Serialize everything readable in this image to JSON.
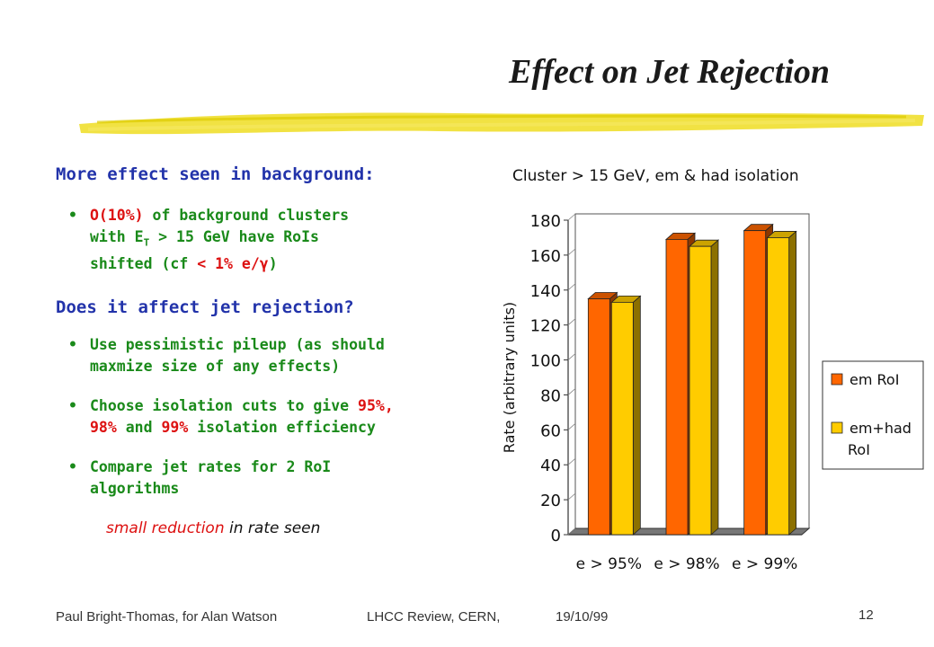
{
  "slide": {
    "title": "Effect on Jet Rejection",
    "page_number": "12",
    "footer_author": "Paul Bright-Thomas, for Alan Watson",
    "footer_event": "LHCC Review, CERN,",
    "footer_date": "19/10/99"
  },
  "content": {
    "heading1": "More effect seen in background:",
    "bullet1_red": "O(10%)",
    "bullet1_line1_rest": " of background clusters",
    "bullet1_line2_a": "with E",
    "bullet1_line2_sub": "T",
    "bullet1_line2_b": " > 15 GeV have RoIs",
    "bullet1_line3_a": "shifted (cf ",
    "bullet1_line3_red": "< 1% e/γ",
    "bullet1_line3_b": ")",
    "heading2": "Does it affect jet rejection?",
    "bullet2_line1": "Use pessimistic pileup (as should",
    "bullet2_line2": "maxmize size of any effects)",
    "bullet3_line1_a": "Choose isolation cuts to give ",
    "bullet3_line1_red": "95%,",
    "bullet3_line2_red1": "98%",
    "bullet3_line2_mid": " and ",
    "bullet3_line2_red2": "99%",
    "bullet3_line2_rest": " isolation efficiency",
    "bullet4_line1": "Compare jet rates for 2 RoI",
    "bullet4_line2": "algorithms",
    "note_red": "small reduction",
    "note_rest": " in rate seen",
    "bullet_glyph": "•"
  },
  "chart_data": {
    "type": "bar",
    "title": "Cluster > 15 GeV, em & had isolation",
    "ylabel": "Rate (arbitrary units)",
    "categories": [
      "e > 95%",
      "e > 98%",
      "e > 99%"
    ],
    "ylim": [
      0,
      180
    ],
    "yticks": [
      0,
      20,
      40,
      60,
      80,
      100,
      120,
      140,
      160,
      180
    ],
    "series": [
      {
        "name": "em RoI",
        "values": [
          135,
          169,
          174
        ],
        "color": "#ff6600"
      },
      {
        "name": "em+had RoI",
        "values": [
          133,
          165,
          170
        ],
        "color": "#ffcc00"
      }
    ],
    "legend_position": "right",
    "three_d": true
  }
}
